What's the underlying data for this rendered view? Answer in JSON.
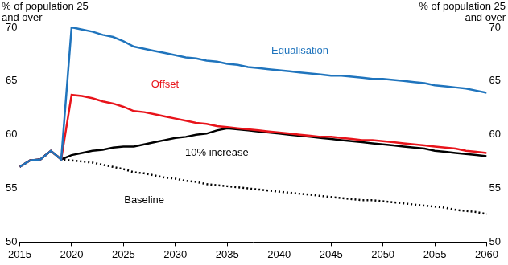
{
  "chart_data": {
    "type": "line",
    "y_label": "% of population 25 and over",
    "y2_label": "% of population 25 and over",
    "x": [
      2015,
      2016,
      2017,
      2018,
      2019,
      2020,
      2021,
      2022,
      2023,
      2024,
      2025,
      2026,
      2027,
      2028,
      2029,
      2030,
      2031,
      2032,
      2033,
      2034,
      2035,
      2036,
      2037,
      2038,
      2039,
      2040,
      2041,
      2042,
      2043,
      2044,
      2045,
      2046,
      2047,
      2048,
      2049,
      2050,
      2051,
      2052,
      2053,
      2054,
      2055,
      2056,
      2057,
      2058,
      2059,
      2060
    ],
    "xlim": [
      2015,
      2060
    ],
    "xticks": [
      2015,
      2020,
      2025,
      2030,
      2035,
      2040,
      2045,
      2050,
      2055,
      2060
    ],
    "ylim": [
      50,
      70
    ],
    "yticks": [
      50,
      55,
      60,
      65,
      70
    ],
    "y2lim": [
      50,
      70
    ],
    "y2ticks": [
      50,
      55,
      60,
      65,
      70
    ],
    "grid": false,
    "series": [
      {
        "name": "Equalisation",
        "color": "#1f74bd",
        "line_style": "solid",
        "values": [
          57.0,
          57.6,
          57.7,
          58.5,
          57.7,
          70.0,
          69.8,
          69.6,
          69.3,
          69.1,
          68.7,
          68.2,
          68.0,
          67.8,
          67.6,
          67.4,
          67.2,
          67.1,
          66.9,
          66.8,
          66.6,
          66.5,
          66.3,
          66.2,
          66.1,
          66.0,
          65.9,
          65.8,
          65.7,
          65.6,
          65.5,
          65.5,
          65.4,
          65.3,
          65.2,
          65.2,
          65.1,
          65.0,
          64.9,
          64.8,
          64.6,
          64.5,
          64.4,
          64.3,
          64.1,
          63.9
        ]
      },
      {
        "name": "Offset",
        "color": "#e8141b",
        "line_style": "solid",
        "values": [
          57.0,
          57.6,
          57.7,
          58.5,
          57.7,
          63.7,
          63.6,
          63.4,
          63.1,
          62.9,
          62.6,
          62.2,
          62.1,
          61.9,
          61.7,
          61.5,
          61.3,
          61.1,
          61.0,
          60.8,
          60.7,
          60.6,
          60.5,
          60.4,
          60.3,
          60.2,
          60.1,
          60.0,
          59.9,
          59.8,
          59.8,
          59.7,
          59.6,
          59.5,
          59.5,
          59.4,
          59.3,
          59.2,
          59.1,
          59.0,
          58.9,
          58.8,
          58.7,
          58.5,
          58.4,
          58.3
        ]
      },
      {
        "name": "10% increase",
        "color": "#000000",
        "line_style": "solid",
        "values": [
          57.0,
          57.6,
          57.7,
          58.5,
          57.7,
          58.1,
          58.3,
          58.5,
          58.6,
          58.8,
          58.9,
          58.9,
          59.1,
          59.3,
          59.5,
          59.7,
          59.8,
          60.0,
          60.1,
          60.4,
          60.6,
          60.5,
          60.4,
          60.3,
          60.2,
          60.1,
          60.0,
          59.9,
          59.8,
          59.7,
          59.6,
          59.5,
          59.4,
          59.3,
          59.2,
          59.1,
          59.0,
          58.9,
          58.8,
          58.7,
          58.5,
          58.4,
          58.3,
          58.2,
          58.1,
          58.0
        ]
      },
      {
        "name": "Baseline",
        "color": "#000000",
        "line_style": "dotted",
        "values": [
          57.0,
          57.6,
          57.7,
          58.5,
          57.7,
          57.6,
          57.5,
          57.4,
          57.2,
          57.0,
          56.8,
          56.5,
          56.4,
          56.2,
          56.0,
          55.9,
          55.7,
          55.6,
          55.4,
          55.3,
          55.2,
          55.1,
          55.0,
          54.9,
          54.8,
          54.7,
          54.6,
          54.5,
          54.4,
          54.3,
          54.2,
          54.1,
          54.0,
          53.9,
          53.9,
          53.8,
          53.7,
          53.6,
          53.5,
          53.4,
          53.3,
          53.2,
          53.0,
          52.9,
          52.8,
          52.6
        ]
      }
    ]
  }
}
